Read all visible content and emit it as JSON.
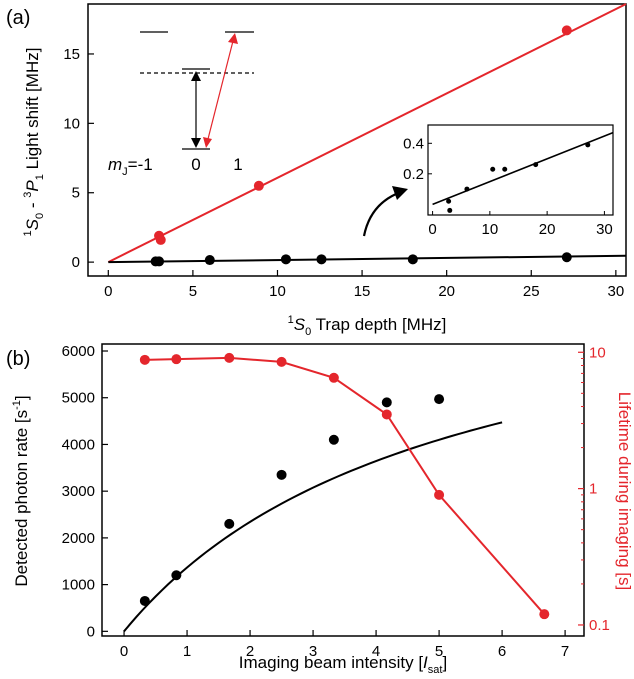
{
  "colors": {
    "black": "#000000",
    "red": "#e4262c"
  },
  "chart_data": [
    {
      "type": "scatter",
      "panel_label": "(a)",
      "xlabel_parts": [
        "1",
        "S",
        "0",
        " Trap depth [MHz]"
      ],
      "ylabel_parts": [
        "1",
        "S",
        "0",
        " - ",
        "3",
        "P",
        "1",
        " Light shift [MHz]"
      ],
      "xlim": [
        -1.2,
        30.6
      ],
      "ylim": [
        -1.0,
        18.6
      ],
      "xticks": [
        "0",
        "5",
        "10",
        "15",
        "20",
        "25",
        "30"
      ],
      "yticks": [
        "0",
        "5",
        "10",
        "15"
      ],
      "grid": false,
      "series": [
        {
          "color": "#e4262c",
          "x": [
            3.0,
            3.1,
            8.9,
            27.1
          ],
          "y": [
            1.9,
            1.6,
            5.5,
            16.7
          ],
          "fit": [
            [
              0,
              0
            ],
            [
              30.6,
              18.6
            ]
          ]
        },
        {
          "color": "#000000",
          "x": [
            2.8,
            3.0,
            6.0,
            10.5,
            12.6,
            18.0,
            27.1
          ],
          "y": [
            0.05,
            0.05,
            0.15,
            0.2,
            0.2,
            0.2,
            0.35
          ],
          "fit": [
            [
              0,
              0
            ],
            [
              30.6,
              0.46
            ]
          ]
        }
      ],
      "inset": {
        "xlim": [
          -0.8,
          31.5
        ],
        "ylim": [
          -0.07,
          0.52
        ],
        "xticks": [
          "0",
          "10",
          "20",
          "30"
        ],
        "yticks": [
          "0.2",
          "0.4"
        ],
        "x": [
          2.8,
          3.0,
          6.0,
          10.5,
          12.6,
          18.0,
          27.1
        ],
        "y": [
          0.02,
          -0.04,
          0.1,
          0.23,
          0.23,
          0.26,
          0.39
        ],
        "fit": [
          [
            0,
            0
          ],
          [
            31.5,
            0.47
          ]
        ]
      },
      "level_diagram": {
        "mj_prefix": "m",
        "mj_sub": "J",
        "mj_labels": [
          "=-1",
          "0",
          "1"
        ]
      }
    },
    {
      "type": "scatter",
      "panel_label": "(b)",
      "xlabel_prefix": "Imaging beam intensity [",
      "xlabel_var": "I",
      "xlabel_sub": "sat",
      "xlabel_suffix": "]",
      "ylabel_left": "Detected photon rate [s",
      "ylabel_left_sup": "-1",
      "ylabel_left_end": "]",
      "ylabel_right": "Lifetime during imaging [s]",
      "xlim": [
        -0.35,
        7.3
      ],
      "ylim_left": [
        -100,
        6150
      ],
      "ylim_right_log": [
        0.083,
        11.5
      ],
      "xticks": [
        "0",
        "1",
        "2",
        "3",
        "4",
        "5",
        "6",
        "7"
      ],
      "yticks_left": [
        "0",
        "1000",
        "2000",
        "3000",
        "4000",
        "5000",
        "6000"
      ],
      "yticks_right": [
        "0.1",
        "1",
        "10"
      ],
      "grid": false,
      "series": [
        {
          "axis": "left",
          "color": "#000000",
          "x": [
            0.33,
            0.83,
            1.67,
            2.5,
            3.33,
            4.17,
            5.0
          ],
          "y": [
            650,
            1200,
            2300,
            3350,
            4100,
            4900,
            4970
          ],
          "fit_saturation": {
            "rmax": 8200,
            "isat": 5.0,
            "xmax": 6.0
          }
        },
        {
          "axis": "right",
          "color": "#e4262c",
          "x": [
            0.33,
            0.83,
            1.67,
            2.5,
            3.33,
            4.17,
            5.0,
            6.67
          ],
          "y": [
            8.8,
            8.9,
            9.1,
            8.5,
            6.5,
            3.5,
            0.9,
            0.12
          ]
        }
      ]
    }
  ]
}
